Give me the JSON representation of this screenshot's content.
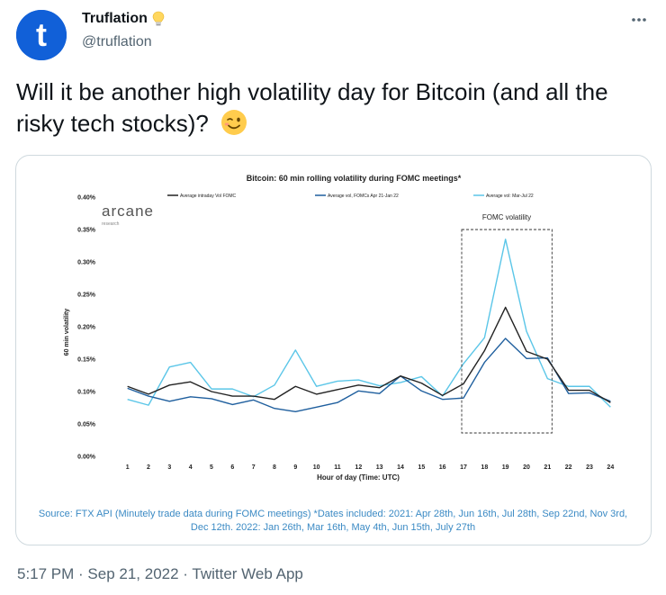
{
  "author": {
    "name": "Truflation",
    "handle": "@truflation",
    "avatar_letter": "t",
    "badge_icon": "lightbulb-icon"
  },
  "tweet": {
    "text": "Will it be another high volatility day for Bitcoin (and all the risky tech stocks)?",
    "emoji": "winking-face"
  },
  "timestamp": {
    "time": "5:17 PM",
    "sep1": " · ",
    "date": "Sep 21, 2022",
    "sep2": " · ",
    "client": "Twitter Web App"
  },
  "caption": "Source: FTX API (Minutely trade data during FOMC meetings) *Dates included: 2021: Apr 28th, Jun 16th, Jul 28th, Sep 22nd, Nov 3rd, Dec 12th. 2022: Jan 26th, Mar 16th, May 4th, Jun 15th, July 27th",
  "watermark": {
    "brand": "arcane",
    "sub": "research"
  },
  "colors": {
    "black_series": "#222222",
    "dark_blue_series": "#1f5f9e",
    "light_blue_series": "#5bc6e8",
    "caption_text": "#3b8ac4"
  },
  "chart_data": {
    "type": "line",
    "title": "Bitcoin: 60 min rolling volatility during FOMC meetings*",
    "xlabel": "Hour of day (Time: UTC)",
    "ylabel": "60 min volatility",
    "annotation": "FOMC volatility",
    "categories": [
      "1",
      "2",
      "3",
      "4",
      "5",
      "6",
      "7",
      "8",
      "9",
      "10",
      "11",
      "12",
      "13",
      "14",
      "15",
      "16",
      "17",
      "18",
      "19",
      "20",
      "21",
      "22",
      "23",
      "24"
    ],
    "y_ticks": [
      "0.00%",
      "0.05%",
      "0.10%",
      "0.15%",
      "0.20%",
      "0.25%",
      "0.30%",
      "0.35%",
      "0.40%"
    ],
    "ylim": [
      0,
      0.4
    ],
    "series": [
      {
        "name": "Average intraday Vol FOMC",
        "color": "#222222",
        "values": [
          0.108,
          0.096,
          0.11,
          0.115,
          0.1,
          0.093,
          0.093,
          0.088,
          0.108,
          0.096,
          0.103,
          0.11,
          0.106,
          0.124,
          0.113,
          0.094,
          0.112,
          0.163,
          0.23,
          0.162,
          0.15,
          0.102,
          0.102,
          0.083
        ]
      },
      {
        "name": "Average vol, FOMCs Apr 21-Jan 22",
        "color": "#1f5f9e",
        "values": [
          0.105,
          0.093,
          0.085,
          0.092,
          0.089,
          0.08,
          0.087,
          0.074,
          0.069,
          0.076,
          0.083,
          0.101,
          0.097,
          0.124,
          0.101,
          0.088,
          0.09,
          0.145,
          0.182,
          0.151,
          0.152,
          0.097,
          0.098,
          0.085
        ]
      },
      {
        "name": "Average vol: Mar-Jul 22",
        "color": "#5bc6e8",
        "values": [
          0.088,
          0.079,
          0.138,
          0.145,
          0.104,
          0.104,
          0.092,
          0.11,
          0.164,
          0.108,
          0.116,
          0.118,
          0.109,
          0.114,
          0.123,
          0.093,
          0.143,
          0.183,
          0.335,
          0.193,
          0.12,
          0.108,
          0.108,
          0.076
        ]
      }
    ],
    "legend_position": "top"
  }
}
